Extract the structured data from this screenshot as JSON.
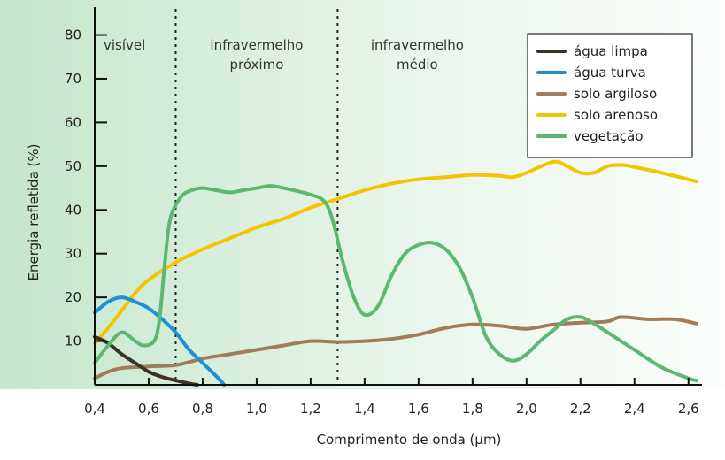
{
  "chart_data": {
    "type": "line",
    "title": "",
    "xlabel": "Comprimento de onda (µm)",
    "ylabel": "Energia refletida (%)",
    "xlim": [
      0.4,
      2.65
    ],
    "ylim": [
      0,
      88
    ],
    "x_ticks": [
      0.4,
      0.6,
      0.8,
      1.0,
      1.2,
      1.4,
      1.6,
      1.8,
      2.0,
      2.2,
      2.4,
      2.6
    ],
    "x_tick_labels": [
      "0,4",
      "0,6",
      "0,8",
      "1,0",
      "1,2",
      "1,4",
      "1,6",
      "1,8",
      "2,0",
      "2,2",
      "2,4",
      "2,6"
    ],
    "y_ticks": [
      10,
      20,
      30,
      40,
      50,
      60,
      70,
      80
    ],
    "y_tick_labels": [
      "10",
      "20",
      "30",
      "40",
      "50",
      "60",
      "70",
      "80"
    ],
    "grid": false,
    "legend_position": "top-right",
    "regions": [
      {
        "label": [
          "visível"
        ],
        "from": 0.4,
        "to": 0.7
      },
      {
        "label": [
          "infravermelho",
          "próximo"
        ],
        "from": 0.7,
        "to": 1.3
      },
      {
        "label": [
          "infravermelho",
          "médio"
        ],
        "from": 1.3,
        "to": 2.65
      }
    ],
    "boundaries": [
      0.7,
      1.3
    ],
    "series": [
      {
        "name": "água limpa",
        "color": "#3b3328",
        "points": [
          [
            0.4,
            11
          ],
          [
            0.45,
            9.5
          ],
          [
            0.5,
            7
          ],
          [
            0.55,
            5
          ],
          [
            0.6,
            3
          ],
          [
            0.65,
            1.8
          ],
          [
            0.7,
            1
          ],
          [
            0.75,
            0.3
          ],
          [
            0.78,
            0
          ]
        ]
      },
      {
        "name": "água turva",
        "color": "#1e90d8",
        "points": [
          [
            0.4,
            16.5
          ],
          [
            0.45,
            19
          ],
          [
            0.5,
            20
          ],
          [
            0.55,
            19
          ],
          [
            0.6,
            17.5
          ],
          [
            0.65,
            15
          ],
          [
            0.7,
            12
          ],
          [
            0.75,
            8
          ],
          [
            0.8,
            5
          ],
          [
            0.85,
            2
          ],
          [
            0.88,
            0
          ]
        ]
      },
      {
        "name": "solo argiloso",
        "color": "#a07c5a",
        "points": [
          [
            0.4,
            1.5
          ],
          [
            0.45,
            3
          ],
          [
            0.5,
            3.8
          ],
          [
            0.6,
            4.2
          ],
          [
            0.7,
            4.5
          ],
          [
            0.8,
            6
          ],
          [
            0.9,
            7
          ],
          [
            1.0,
            8
          ],
          [
            1.1,
            9
          ],
          [
            1.2,
            10
          ],
          [
            1.3,
            9.8
          ],
          [
            1.4,
            10
          ],
          [
            1.5,
            10.5
          ],
          [
            1.6,
            11.5
          ],
          [
            1.7,
            13
          ],
          [
            1.8,
            13.8
          ],
          [
            1.9,
            13.5
          ],
          [
            2.0,
            12.8
          ],
          [
            2.1,
            13.8
          ],
          [
            2.2,
            14.2
          ],
          [
            2.3,
            14.5
          ],
          [
            2.35,
            15.5
          ],
          [
            2.45,
            15
          ],
          [
            2.55,
            15
          ],
          [
            2.63,
            14
          ]
        ]
      },
      {
        "name": "solo arenoso",
        "color": "#f5c400",
        "points": [
          [
            0.4,
            9.5
          ],
          [
            0.45,
            13
          ],
          [
            0.5,
            17
          ],
          [
            0.55,
            21
          ],
          [
            0.6,
            24
          ],
          [
            0.7,
            28
          ],
          [
            0.8,
            31
          ],
          [
            0.9,
            33.5
          ],
          [
            1.0,
            36
          ],
          [
            1.1,
            38
          ],
          [
            1.2,
            40.5
          ],
          [
            1.3,
            42.5
          ],
          [
            1.4,
            44.5
          ],
          [
            1.5,
            46
          ],
          [
            1.6,
            47
          ],
          [
            1.7,
            47.5
          ],
          [
            1.8,
            48
          ],
          [
            1.9,
            47.8
          ],
          [
            1.95,
            47.5
          ],
          [
            2.0,
            48.5
          ],
          [
            2.1,
            51
          ],
          [
            2.15,
            50
          ],
          [
            2.2,
            48.5
          ],
          [
            2.25,
            48.5
          ],
          [
            2.3,
            50
          ],
          [
            2.35,
            50.3
          ],
          [
            2.4,
            49.8
          ],
          [
            2.5,
            48.5
          ],
          [
            2.63,
            46.5
          ]
        ]
      },
      {
        "name": "vegetação",
        "color": "#5bb870",
        "points": [
          [
            0.4,
            5
          ],
          [
            0.45,
            9
          ],
          [
            0.5,
            12
          ],
          [
            0.55,
            10
          ],
          [
            0.58,
            9
          ],
          [
            0.62,
            10
          ],
          [
            0.64,
            15
          ],
          [
            0.66,
            28
          ],
          [
            0.68,
            38
          ],
          [
            0.72,
            43
          ],
          [
            0.76,
            44.5
          ],
          [
            0.8,
            45
          ],
          [
            0.85,
            44.5
          ],
          [
            0.9,
            44
          ],
          [
            0.95,
            44.5
          ],
          [
            1.0,
            45
          ],
          [
            1.05,
            45.5
          ],
          [
            1.1,
            45
          ],
          [
            1.2,
            43.5
          ],
          [
            1.25,
            42
          ],
          [
            1.28,
            38
          ],
          [
            1.32,
            28
          ],
          [
            1.36,
            20
          ],
          [
            1.4,
            16
          ],
          [
            1.45,
            18
          ],
          [
            1.5,
            25
          ],
          [
            1.55,
            30
          ],
          [
            1.6,
            32
          ],
          [
            1.65,
            32.5
          ],
          [
            1.7,
            31
          ],
          [
            1.75,
            27
          ],
          [
            1.8,
            20
          ],
          [
            1.85,
            11
          ],
          [
            1.9,
            7
          ],
          [
            1.95,
            5.5
          ],
          [
            2.0,
            7
          ],
          [
            2.05,
            10
          ],
          [
            2.1,
            12.5
          ],
          [
            2.15,
            15
          ],
          [
            2.2,
            15.5
          ],
          [
            2.25,
            14
          ],
          [
            2.3,
            12
          ],
          [
            2.4,
            8
          ],
          [
            2.5,
            4
          ],
          [
            2.6,
            1.5
          ],
          [
            2.63,
            1
          ]
        ]
      }
    ]
  }
}
